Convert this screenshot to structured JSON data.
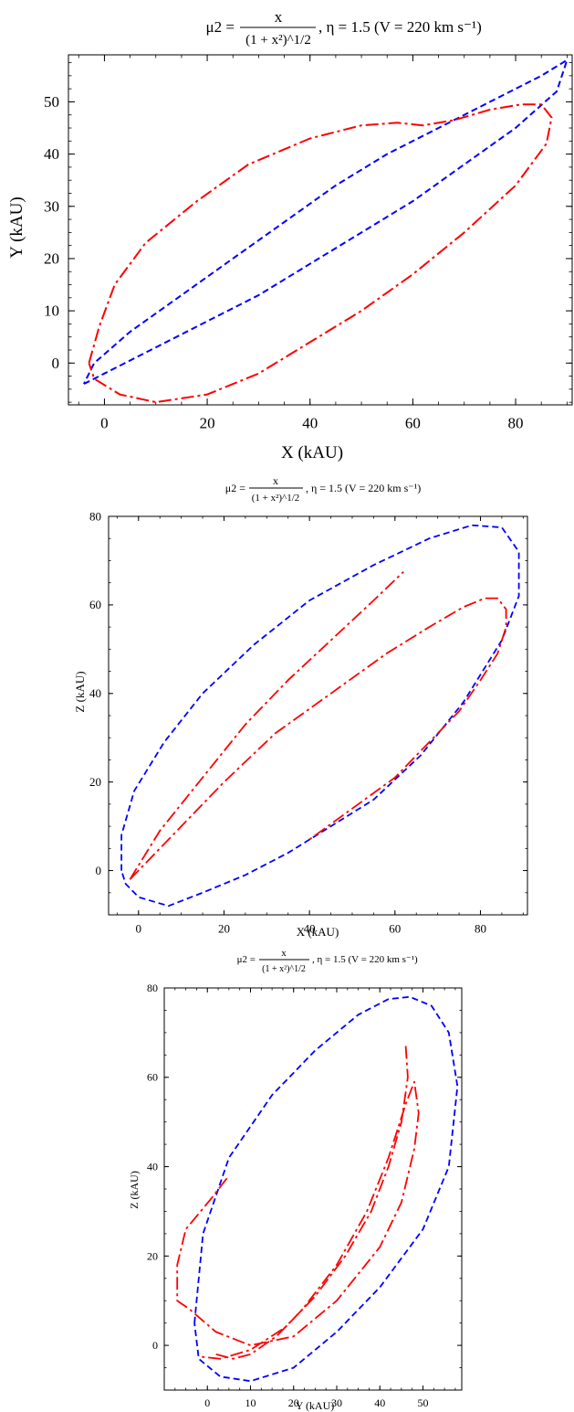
{
  "chart_data": [
    {
      "type": "line",
      "title": {
        "lhs": "μ2 =",
        "num": "x",
        "den": "(1 + x²)^1/2",
        "rhs": ", η = 1.5 (V = 220 km s⁻¹)"
      },
      "xlabel": "X (kAU)",
      "ylabel": "Y (kAU)",
      "xlim": [
        -7,
        91
      ],
      "ylim": [
        -8,
        59
      ],
      "xticks": [
        0,
        20,
        40,
        60,
        80
      ],
      "yticks": [
        0,
        10,
        20,
        30,
        40,
        50
      ],
      "grid": false,
      "series": [
        {
          "style": "dashed",
          "color": "#0000ff",
          "x": [
            -4,
            0,
            10,
            20,
            30,
            40,
            50,
            60,
            70,
            80,
            88,
            90,
            85,
            75,
            65,
            55,
            45,
            35,
            25,
            15,
            5,
            -2,
            -4
          ],
          "y": [
            -4,
            -2,
            3,
            8,
            13,
            19,
            25,
            31,
            38,
            45,
            52,
            58,
            55,
            50,
            45,
            40,
            34,
            27,
            20,
            13,
            6,
            0,
            -4
          ]
        },
        {
          "style": "dashdot",
          "color": "#ff0000",
          "x": [
            -3,
            -1,
            2,
            8,
            18,
            28,
            40,
            50,
            57,
            62,
            68,
            75,
            81,
            85,
            87,
            86,
            80,
            70,
            60,
            50,
            40,
            30,
            20,
            10,
            3,
            -2,
            -3
          ],
          "y": [
            0,
            7,
            15,
            23,
            31,
            38,
            43,
            45.5,
            46,
            45.5,
            46.5,
            48.5,
            49.5,
            49.5,
            47,
            42,
            34,
            25,
            17,
            10,
            4,
            -2,
            -6,
            -7.5,
            -6,
            -3,
            0
          ]
        }
      ]
    },
    {
      "type": "line",
      "title": {
        "lhs": "μ2 =",
        "num": "x",
        "den": "(1 + x²)^1/2",
        "rhs": ", η = 1.5 (V = 220 km s⁻¹)"
      },
      "xlabel": "X (kAU)",
      "ylabel": "Z (kAU)",
      "xlim": [
        -7,
        91
      ],
      "ylim": [
        -10,
        80
      ],
      "xticks": [
        0,
        20,
        40,
        60,
        80
      ],
      "yticks": [
        0,
        20,
        40,
        60,
        80
      ],
      "grid": false,
      "series": [
        {
          "style": "dashed",
          "color": "#0000ff",
          "x": [
            -4,
            -4,
            -1,
            6,
            15,
            27,
            40,
            55,
            68,
            78,
            85,
            89,
            89,
            85,
            76,
            66,
            55,
            45,
            35,
            25,
            15,
            7,
            0,
            -3,
            -4
          ],
          "y": [
            0,
            8,
            18,
            29,
            40,
            51,
            61,
            69,
            75,
            78,
            77.5,
            72,
            62,
            52,
            38,
            26,
            16,
            10,
            4,
            -1,
            -5,
            -8,
            -6,
            -3,
            0
          ]
        },
        {
          "style": "dashdot",
          "color": "#ff0000",
          "x": [
            -2,
            5,
            15,
            25,
            35,
            45,
            55,
            62
          ],
          "y": [
            -2,
            9,
            21,
            33,
            43,
            52,
            61,
            67.5
          ]
        },
        {
          "style": "dashdot",
          "color": "#ff0000",
          "x": [
            -2,
            8,
            20,
            32,
            45,
            58,
            68,
            76,
            81,
            84,
            86,
            86,
            84,
            80,
            75,
            68,
            60,
            50,
            40
          ],
          "y": [
            -2,
            8,
            20,
            31,
            40,
            49,
            55,
            59.5,
            61.5,
            61.5,
            59,
            55,
            49,
            43,
            36,
            29,
            21,
            14,
            7
          ]
        }
      ]
    },
    {
      "type": "line",
      "title": {
        "lhs": "μ2 =",
        "num": "x",
        "den": "(1 + x²)^1/2",
        "rhs": ", η = 1.5 (V = 220 km s⁻¹)"
      },
      "xlabel": "Y (kAU)",
      "ylabel": "Z (kAU)",
      "xlim": [
        -10,
        59
      ],
      "ylim": [
        -10,
        80
      ],
      "xticks": [
        0,
        10,
        20,
        30,
        40,
        50
      ],
      "yticks": [
        0,
        20,
        40,
        60,
        80
      ],
      "grid": false,
      "series": [
        {
          "style": "dashed",
          "color": "#0000ff",
          "x": [
            -3,
            -1,
            5,
            15,
            25,
            35,
            42,
            47,
            52,
            56,
            58,
            56,
            50,
            40,
            30,
            20,
            10,
            3,
            -2,
            -3
          ],
          "y": [
            5,
            25,
            42,
            56,
            66,
            74,
            77.5,
            78,
            76,
            70,
            58,
            40,
            26,
            13,
            3,
            -5,
            -8,
            -7,
            -3,
            5
          ]
        },
        {
          "style": "dashdot",
          "color": "#ff0000",
          "x": [
            46,
            46.5,
            45,
            42,
            38,
            32,
            25,
            18,
            10,
            3,
            -2
          ],
          "y": [
            67,
            60,
            50,
            40,
            30,
            20,
            11,
            4,
            -1,
            -3,
            -2.5
          ]
        },
        {
          "style": "dashdot",
          "color": "#ff0000",
          "x": [
            2,
            6,
            10,
            16,
            22,
            30,
            37,
            42,
            46,
            48,
            49,
            48,
            45,
            40,
            30,
            20,
            10,
            2,
            -4,
            -7,
            -7,
            -5,
            1,
            5
          ],
          "y": [
            -2,
            -3,
            -2,
            2,
            8,
            18,
            30,
            42,
            54,
            59,
            52,
            44,
            32,
            22,
            10,
            2,
            0,
            3,
            8,
            10,
            18,
            26,
            33,
            38
          ]
        }
      ]
    }
  ]
}
